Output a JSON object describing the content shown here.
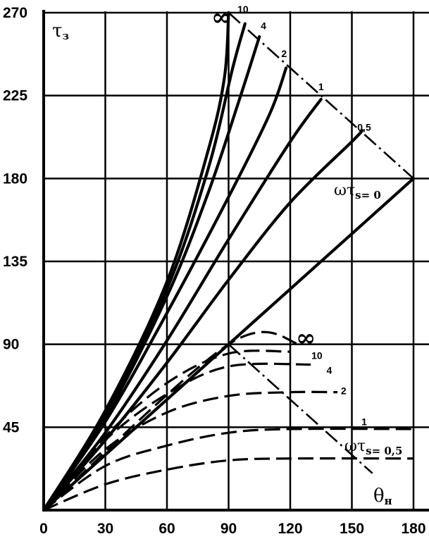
{
  "chart_data": {
    "type": "line",
    "xlabel": "θн",
    "ylabel": "τз",
    "xlim": [
      0,
      180
    ],
    "ylim": [
      0,
      270
    ],
    "xticks": [
      0,
      30,
      60,
      90,
      120,
      150,
      180
    ],
    "yticks": [
      45,
      90,
      135,
      180,
      225,
      270
    ],
    "grid": true,
    "parameter_label": {
      "prefix": "ωτ",
      "subscript": "s",
      "first_value": "= 0",
      "lower_first_value": "= 0,5"
    },
    "upper_family": {
      "style": "solid",
      "series": [
        {
          "name": "0",
          "points": [
            [
              0,
              0
            ],
            [
              180,
              180
            ]
          ]
        },
        {
          "name": "0,5",
          "points": [
            [
              0,
              0
            ],
            [
              30,
              38
            ],
            [
              60,
              80
            ],
            [
              90,
              125
            ],
            [
              120,
              167
            ],
            [
              150,
              200
            ],
            [
              155,
              206
            ]
          ]
        },
        {
          "name": "1",
          "points": [
            [
              0,
              0
            ],
            [
              30,
              42
            ],
            [
              60,
              92
            ],
            [
              90,
              147
            ],
            [
              120,
              200
            ],
            [
              135,
              223
            ]
          ]
        },
        {
          "name": "2",
          "points": [
            [
              0,
              0
            ],
            [
              30,
              48
            ],
            [
              60,
              107
            ],
            [
              90,
              170
            ],
            [
              110,
              215
            ],
            [
              118,
              240
            ]
          ]
        },
        {
          "name": "4",
          "points": [
            [
              0,
              0
            ],
            [
              30,
              50
            ],
            [
              60,
              116
            ],
            [
              80,
              172
            ],
            [
              95,
              222
            ],
            [
              105,
              257
            ]
          ]
        },
        {
          "name": "10",
          "points": [
            [
              0,
              0
            ],
            [
              30,
              52
            ],
            [
              60,
              120
            ],
            [
              80,
              185
            ],
            [
              92,
              240
            ],
            [
              98,
              264
            ]
          ]
        },
        {
          "name": "∞",
          "points": [
            [
              0,
              0
            ],
            [
              30,
              54
            ],
            [
              60,
              124
            ],
            [
              80,
              195
            ],
            [
              88,
              235
            ],
            [
              90,
              270
            ]
          ]
        }
      ]
    },
    "lower_family": {
      "style": "dashed",
      "series": [
        {
          "name": "∞",
          "points": [
            [
              0,
              0
            ],
            [
              90,
              90
            ],
            [
              125,
              90
            ]
          ]
        },
        {
          "name": "10",
          "points": [
            [
              0,
              0
            ],
            [
              30,
              40
            ],
            [
              60,
              69
            ],
            [
              90,
              85
            ],
            [
              120,
              86
            ]
          ]
        },
        {
          "name": "4",
          "points": [
            [
              0,
              0
            ],
            [
              30,
              38
            ],
            [
              60,
              63
            ],
            [
              90,
              78
            ],
            [
              130,
              79
            ]
          ]
        },
        {
          "name": "2",
          "points": [
            [
              0,
              0
            ],
            [
              30,
              33
            ],
            [
              60,
              53
            ],
            [
              90,
              62
            ],
            [
              120,
              64
            ],
            [
              143,
              64
            ]
          ]
        },
        {
          "name": "1",
          "points": [
            [
              0,
              0
            ],
            [
              30,
              24
            ],
            [
              60,
              35
            ],
            [
              90,
              42
            ],
            [
              120,
              44
            ],
            [
              180,
              44
            ]
          ]
        },
        {
          "name": "0,5",
          "points": [
            [
              0,
              0
            ],
            [
              30,
              14
            ],
            [
              60,
              22
            ],
            [
              90,
              27
            ],
            [
              120,
              28
            ],
            [
              180,
              28
            ]
          ]
        }
      ]
    },
    "boundary_lines": [
      {
        "name": "upper",
        "points": [
          [
            90,
            270
          ],
          [
            180,
            180
          ]
        ]
      },
      {
        "name": "lower",
        "points": [
          [
            90,
            90
          ],
          [
            160,
            20
          ]
        ]
      }
    ],
    "series_label_anchors": [
      {
        "text": "10",
        "x": 97,
        "y": 270
      },
      {
        "text": "4",
        "x": 107,
        "y": 261
      },
      {
        "text": "2",
        "x": 117,
        "y": 246
      },
      {
        "text": "1",
        "x": 135,
        "y": 228
      },
      {
        "text": "0,5",
        "x": 156,
        "y": 206
      },
      {
        "text": "10",
        "x": 133,
        "y": 82
      },
      {
        "text": "4",
        "x": 139,
        "y": 74
      },
      {
        "text": "2",
        "x": 146,
        "y": 63
      },
      {
        "text": "1",
        "x": 156,
        "y": 46
      }
    ],
    "infinity_symbol": "∞"
  }
}
